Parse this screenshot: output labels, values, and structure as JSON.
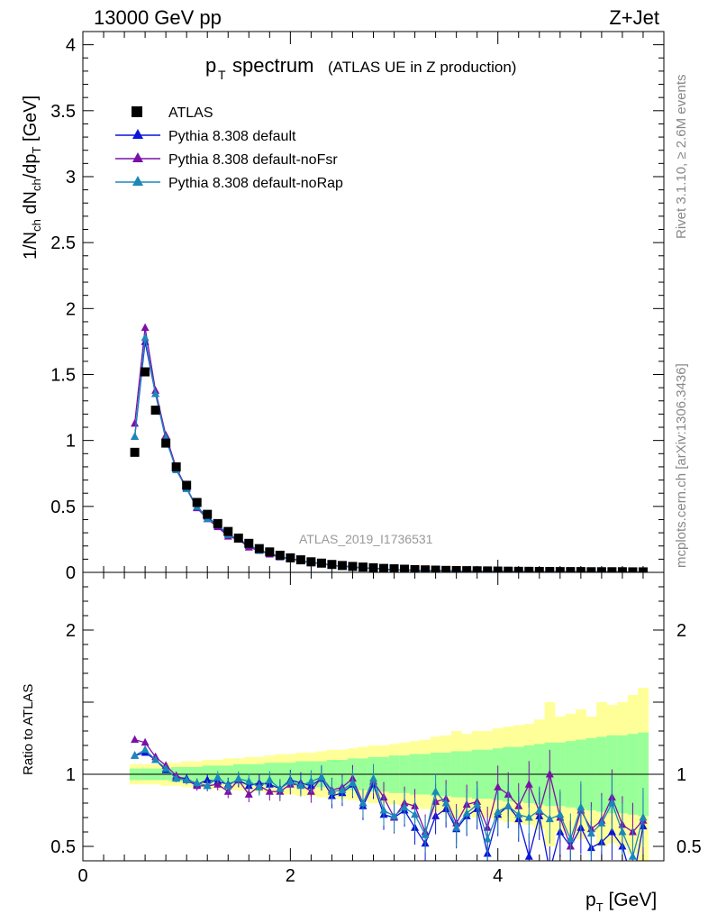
{
  "header": {
    "energy": "13000 GeV pp",
    "process": "Z+Jet",
    "title_main": "p",
    "title_sub": "T",
    "title_word": "spectrum",
    "title_paren": "(ATLAS UE in Z production)",
    "watermark": "ATLAS_2019_I1736531",
    "side_rivet": "Rivet 3.1.10, ≥ 2.6M events",
    "side_mcplots": "mcplots.cern.ch [arXiv:1306.3436]"
  },
  "axes": {
    "ylabel_main": "1/N_ch dN_ch/dp_T [GeV]",
    "ylabel_ratio": "Ratio to ATLAS",
    "xlabel": "p_T [GeV]",
    "main_ylim": [
      0,
      4.1
    ],
    "main_yticks": [
      "0",
      "0.5",
      "1",
      "1.5",
      "2",
      "2.5",
      "3",
      "3.5",
      "4"
    ],
    "ratio_ylim": [
      0.4,
      2.4
    ],
    "ratio_yticks": [
      "0.5",
      "1",
      "2"
    ],
    "xlim": [
      0,
      5.6
    ],
    "xticks": [
      "0",
      "2",
      "4"
    ]
  },
  "legend": {
    "items": [
      "ATLAS",
      "Pythia 8.308 default",
      "Pythia 8.308 default-noFsr",
      "Pythia 8.308 default-noRap"
    ]
  },
  "colors": {
    "data": "#000000",
    "default": "#0b14d8",
    "noFsr": "#7a10a8",
    "noRap": "#1a88b8",
    "band_inner": "#99ff99",
    "band_outer": "#ffff99"
  },
  "chart_data": {
    "type": "scatter",
    "x": [
      0.5,
      0.6,
      0.7,
      0.8,
      0.9,
      1.0,
      1.1,
      1.2,
      1.3,
      1.4,
      1.5,
      1.6,
      1.7,
      1.8,
      1.9,
      2.0,
      2.1,
      2.2,
      2.3,
      2.4,
      2.5,
      2.6,
      2.7,
      2.8,
      2.9,
      3.0,
      3.1,
      3.2,
      3.3,
      3.4,
      3.5,
      3.6,
      3.7,
      3.8,
      3.9,
      4.0,
      4.1,
      4.2,
      4.3,
      4.4,
      4.5,
      4.6,
      4.7,
      4.8,
      4.9,
      5.0,
      5.1,
      5.2,
      5.3,
      5.4
    ],
    "series": [
      {
        "name": "ATLAS",
        "values": [
          0.91,
          1.52,
          1.23,
          0.98,
          0.8,
          0.66,
          0.53,
          0.44,
          0.37,
          0.31,
          0.26,
          0.22,
          0.18,
          0.155,
          0.13,
          0.11,
          0.095,
          0.08,
          0.07,
          0.06,
          0.052,
          0.045,
          0.04,
          0.035,
          0.03,
          0.027,
          0.024,
          0.021,
          0.019,
          0.017,
          0.015,
          0.014,
          0.013,
          0.012,
          0.011,
          0.01,
          0.009,
          0.008,
          0.008,
          0.007,
          0.007,
          0.006,
          0.006,
          0.006,
          0.005,
          0.005,
          0.005,
          0.005,
          0.004,
          0.004
        ]
      },
      {
        "name": "Pythia 8.308 default",
        "ratio": [
          1.13,
          1.15,
          1.1,
          1.03,
          0.98,
          0.97,
          0.93,
          0.96,
          0.95,
          0.93,
          0.96,
          0.92,
          0.94,
          0.93,
          0.9,
          0.96,
          0.94,
          0.92,
          0.97,
          0.85,
          0.87,
          0.93,
          0.78,
          0.93,
          0.72,
          0.7,
          0.75,
          0.63,
          0.52,
          0.71,
          0.76,
          0.62,
          0.71,
          0.76,
          0.45,
          0.72,
          0.78,
          0.69,
          0.43,
          0.71,
          0.33,
          0.6,
          0.5,
          0.63,
          0.49,
          0.53,
          0.6,
          0.5,
          0.25,
          0.64
        ]
      },
      {
        "name": "Pythia 8.308 default-noFsr",
        "ratio": [
          1.24,
          1.22,
          1.12,
          1.06,
          0.99,
          0.96,
          0.92,
          0.92,
          0.93,
          0.88,
          0.96,
          0.86,
          0.92,
          0.88,
          0.88,
          0.93,
          0.93,
          0.88,
          0.98,
          0.89,
          0.91,
          0.97,
          0.8,
          0.95,
          0.84,
          0.7,
          0.8,
          0.78,
          0.6,
          0.81,
          0.83,
          0.66,
          0.79,
          0.81,
          0.63,
          0.91,
          0.86,
          0.78,
          0.93,
          0.74,
          1.0,
          0.7,
          0.5,
          0.75,
          0.62,
          0.68,
          0.84,
          0.65,
          0.6,
          0.68
        ]
      },
      {
        "name": "Pythia 8.308 default-noRap",
        "ratio": [
          1.13,
          1.17,
          1.1,
          1.04,
          0.97,
          0.96,
          0.94,
          0.92,
          0.98,
          0.92,
          0.97,
          0.95,
          0.91,
          0.96,
          0.9,
          0.95,
          0.92,
          0.95,
          0.98,
          0.88,
          0.89,
          0.94,
          0.8,
          0.97,
          0.75,
          0.71,
          0.77,
          0.72,
          0.58,
          0.88,
          0.8,
          0.63,
          0.73,
          0.79,
          0.55,
          0.74,
          0.78,
          0.72,
          0.7,
          0.75,
          0.69,
          0.72,
          0.55,
          0.77,
          0.59,
          0.66,
          0.8,
          0.6,
          0.43,
          0.7
        ]
      }
    ],
    "band_inner_halfwidth": [
      0.04,
      0.04,
      0.04,
      0.04,
      0.05,
      0.05,
      0.05,
      0.06,
      0.06,
      0.06,
      0.07,
      0.07,
      0.07,
      0.08,
      0.08,
      0.08,
      0.09,
      0.09,
      0.09,
      0.1,
      0.1,
      0.11,
      0.11,
      0.12,
      0.12,
      0.13,
      0.13,
      0.14,
      0.14,
      0.15,
      0.15,
      0.16,
      0.16,
      0.17,
      0.17,
      0.18,
      0.19,
      0.19,
      0.2,
      0.21,
      0.22,
      0.22,
      0.23,
      0.24,
      0.25,
      0.26,
      0.27,
      0.27,
      0.28,
      0.29
    ],
    "band_outer_halfwidth": [
      0.07,
      0.07,
      0.07,
      0.08,
      0.08,
      0.09,
      0.09,
      0.1,
      0.1,
      0.11,
      0.11,
      0.12,
      0.12,
      0.13,
      0.14,
      0.14,
      0.15,
      0.15,
      0.16,
      0.17,
      0.17,
      0.18,
      0.19,
      0.2,
      0.2,
      0.21,
      0.22,
      0.23,
      0.24,
      0.26,
      0.27,
      0.3,
      0.28,
      0.3,
      0.3,
      0.32,
      0.33,
      0.34,
      0.35,
      0.38,
      0.5,
      0.4,
      0.42,
      0.45,
      0.4,
      0.5,
      0.48,
      0.5,
      0.55,
      0.6
    ]
  }
}
